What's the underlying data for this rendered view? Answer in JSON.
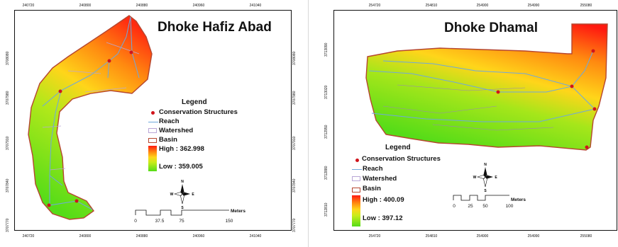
{
  "maps": [
    {
      "title": "Dhoke Hafiz Abad",
      "x_ticks": [
        "240720",
        "240800",
        "240880",
        "240960",
        "241040"
      ],
      "y_ticks": [
        "3708080",
        "3707980",
        "3707910",
        "3707840",
        "3707770"
      ],
      "legend": {
        "title": "Legend",
        "items": [
          "Conservation Structures",
          "Reach",
          "Watershed",
          "Basin"
        ],
        "high": "High : 362.998",
        "low": "Low : 359.005"
      },
      "scale": {
        "labels": [
          "0",
          "37.5",
          "75",
          "150"
        ],
        "unit": "Meters"
      },
      "compass": [
        "N",
        "S",
        "E",
        "W"
      ]
    },
    {
      "title": "Dhoke Dhamal",
      "x_ticks": [
        "254720",
        "254810",
        "254900",
        "254990",
        "255080"
      ],
      "y_ticks": [
        "3713090",
        "3713020",
        "3712950",
        "3712880",
        "3712810"
      ],
      "legend": {
        "title": "Legend",
        "items": [
          "Conservation Structures",
          "Reach",
          "Watershed",
          "Basin"
        ],
        "high": "High : 400.09",
        "low": "Low : 397.12"
      },
      "scale": {
        "labels": [
          "0",
          "25",
          "50",
          "100"
        ],
        "unit": "Meters"
      },
      "compass": [
        "N",
        "S",
        "E",
        "W"
      ]
    }
  ],
  "colors": {
    "high": "#ff1a10",
    "mid": "#ffd51a",
    "low": "#55dc18",
    "reach": "#6fa8dc",
    "basin": "#b5462f",
    "structure": "#d0141b"
  }
}
